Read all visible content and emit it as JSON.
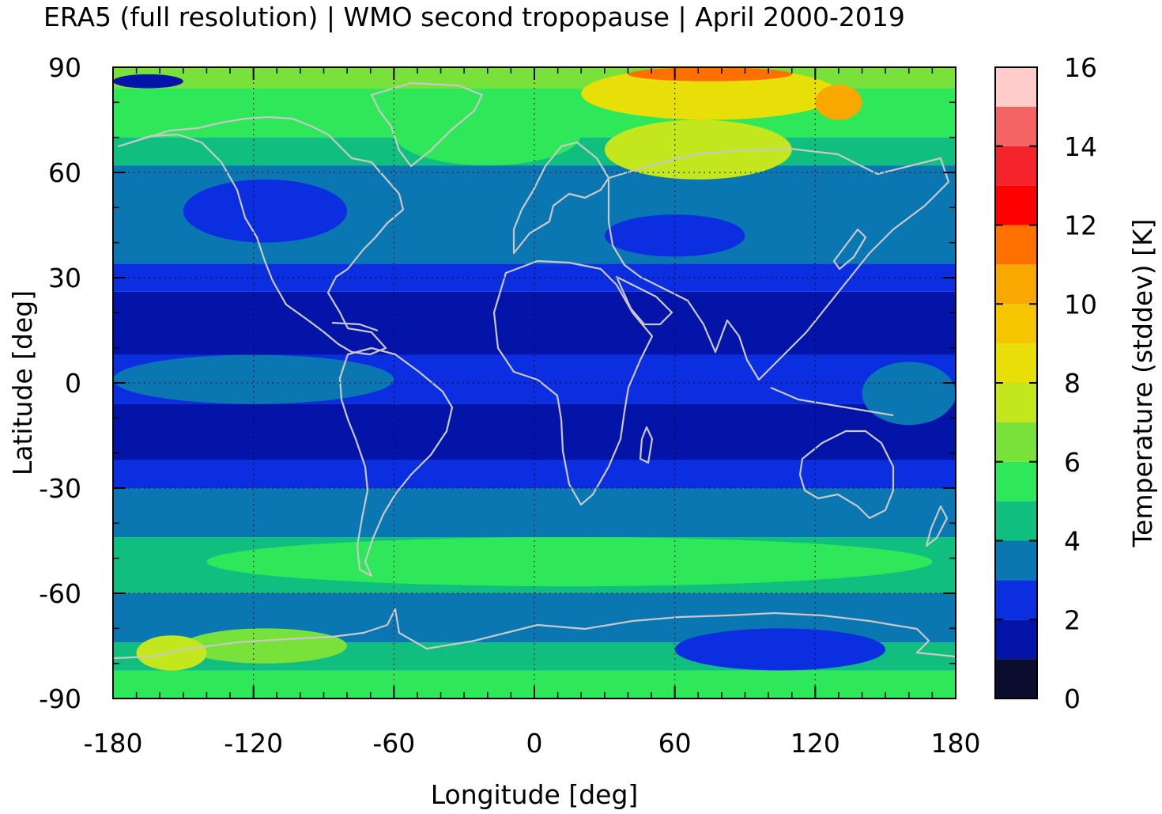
{
  "chart_data": {
    "type": "heatmap",
    "title": "ERA5 (full resolution) | WMO second tropopause | April 2000-2019",
    "xlabel": "Longitude [deg]",
    "ylabel": "Latitude [deg]",
    "colorbar_label": "Temperature (stddev) [K]",
    "xlim": [
      -180,
      180
    ],
    "ylim": [
      -90,
      90
    ],
    "x_ticks": [
      -180,
      -120,
      -60,
      0,
      60,
      120,
      180
    ],
    "x_tick_labels": [
      "-180",
      "-120",
      "-60",
      "0",
      "60",
      "120",
      "180"
    ],
    "y_ticks": [
      -90,
      -60,
      -30,
      0,
      30,
      60,
      90
    ],
    "y_tick_labels": [
      "-90",
      "-60",
      "-30",
      "0",
      "30",
      "60",
      "90"
    ],
    "colorbar_range": [
      0,
      16
    ],
    "colorbar_ticks": [
      0,
      2,
      4,
      6,
      8,
      10,
      12,
      14,
      16
    ],
    "colorbar_tick_labels": [
      "0",
      "2",
      "4",
      "6",
      "8",
      "10",
      "12",
      "14",
      "16"
    ],
    "colorbar_levels": [
      {
        "from": 0,
        "to": 1,
        "color": "#0b0d2e"
      },
      {
        "from": 1,
        "to": 2,
        "color": "#0414a8"
      },
      {
        "from": 2,
        "to": 3,
        "color": "#0a2ee0"
      },
      {
        "from": 3,
        "to": 4,
        "color": "#0a77b3"
      },
      {
        "from": 4,
        "to": 5,
        "color": "#10bf80"
      },
      {
        "from": 5,
        "to": 6,
        "color": "#2ee85a"
      },
      {
        "from": 6,
        "to": 7,
        "color": "#78e23a"
      },
      {
        "from": 7,
        "to": 8,
        "color": "#c3e61c"
      },
      {
        "from": 8,
        "to": 9,
        "color": "#e8de08"
      },
      {
        "from": 9,
        "to": 10,
        "color": "#f5c600"
      },
      {
        "from": 10,
        "to": 11,
        "color": "#f8a800"
      },
      {
        "from": 11,
        "to": 12,
        "color": "#ff7000"
      },
      {
        "from": 12,
        "to": 13,
        "color": "#ff0000"
      },
      {
        "from": 13,
        "to": 14,
        "color": "#f5232a"
      },
      {
        "from": 14,
        "to": 15,
        "color": "#f46464"
      },
      {
        "from": 15,
        "to": 16,
        "color": "#ffcccc"
      }
    ],
    "zonal_bands": [
      {
        "lat_from": 84,
        "lat_to": 90,
        "value": 6.5
      },
      {
        "lat_from": 70,
        "lat_to": 84,
        "value": 5.5
      },
      {
        "lat_from": 62,
        "lat_to": 70,
        "value": 4.5
      },
      {
        "lat_from": 34,
        "lat_to": 62,
        "value": 3.5
      },
      {
        "lat_from": 26,
        "lat_to": 34,
        "value": 2.5
      },
      {
        "lat_from": 8,
        "lat_to": 26,
        "value": 1.5
      },
      {
        "lat_from": -6,
        "lat_to": 8,
        "value": 2.5
      },
      {
        "lat_from": -22,
        "lat_to": -6,
        "value": 1.5
      },
      {
        "lat_from": -30,
        "lat_to": -22,
        "value": 2.5
      },
      {
        "lat_from": -44,
        "lat_to": -30,
        "value": 3.5
      },
      {
        "lat_from": -60,
        "lat_to": -44,
        "value": 4.5
      },
      {
        "lat_from": -74,
        "lat_to": -60,
        "value": 3.5
      },
      {
        "lat_from": -82,
        "lat_to": -74,
        "value": 4.5
      },
      {
        "lat_from": -90,
        "lat_to": -82,
        "value": 5.5
      }
    ],
    "regional_features": [
      {
        "name": "arctic-siberia-high",
        "lon_from": 20,
        "lon_to": 130,
        "lat_from": 75,
        "lat_to": 90,
        "value": 8.5
      },
      {
        "name": "arctic-max",
        "lon_from": 40,
        "lon_to": 110,
        "lat_from": 86,
        "lat_to": 90,
        "value": 11.5
      },
      {
        "name": "eurasia-high",
        "lon_from": 30,
        "lon_to": 110,
        "lat_from": 58,
        "lat_to": 75,
        "value": 7.5
      },
      {
        "name": "east-siberia-high",
        "lon_from": 120,
        "lon_to": 140,
        "lat_from": 75,
        "lat_to": 85,
        "value": 10.5
      },
      {
        "name": "north-atlantic-mid",
        "lon_from": -60,
        "lon_to": 20,
        "lat_from": 62,
        "lat_to": 80,
        "value": 5.5
      },
      {
        "name": "bering-low",
        "lon_from": -180,
        "lon_to": -150,
        "lat_from": 84,
        "lat_to": 88,
        "value": 1.5
      },
      {
        "name": "mediterranean-low",
        "lon_from": 30,
        "lon_to": 90,
        "lat_from": 36,
        "lat_to": 48,
        "value": 2.5
      },
      {
        "name": "north-pacific-low",
        "lon_from": -150,
        "lon_to": -80,
        "lat_from": 40,
        "lat_to": 58,
        "value": 2.5
      },
      {
        "name": "equatorial-pacific",
        "lon_from": -180,
        "lon_to": -60,
        "lat_from": -6,
        "lat_to": 8,
        "value": 3.5
      },
      {
        "name": "pacific-warm-pool",
        "lon_from": 140,
        "lon_to": 180,
        "lat_from": -12,
        "lat_to": 6,
        "value": 3.5
      },
      {
        "name": "southern-ocean-mid",
        "lon_from": -140,
        "lon_to": 170,
        "lat_from": -58,
        "lat_to": -44,
        "value": 5.5
      },
      {
        "name": "antarctic-ross",
        "lon_from": -150,
        "lon_to": -80,
        "lat_from": -80,
        "lat_to": -70,
        "value": 6.5
      },
      {
        "name": "antarctic-west",
        "lon_from": -170,
        "lon_to": -140,
        "lat_from": -82,
        "lat_to": -72,
        "value": 7.5
      },
      {
        "name": "east-antarctic-low",
        "lon_from": 60,
        "lon_to": 150,
        "lat_from": -82,
        "lat_to": -70,
        "value": 2.5
      }
    ],
    "overlays": [
      "coastlines",
      "dotted-grid"
    ]
  }
}
